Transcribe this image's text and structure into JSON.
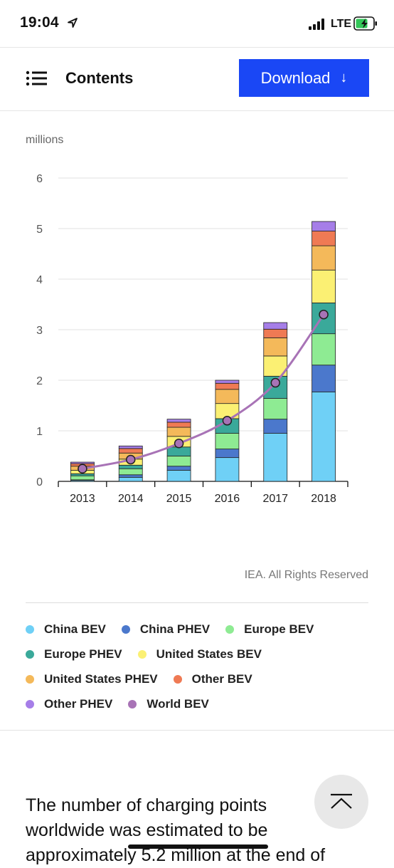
{
  "status_bar": {
    "time": "19:04",
    "network": "LTE"
  },
  "header": {
    "title": "Contents",
    "download_label": "Download",
    "download_arrow": "↓",
    "accent_color": "#1a47f5"
  },
  "chart_data": {
    "type": "bar",
    "stacked": true,
    "unit_label": "millions",
    "categories": [
      "2013",
      "2014",
      "2015",
      "2016",
      "2017",
      "2018"
    ],
    "ylim": [
      0,
      6
    ],
    "yticks": [
      "0",
      "1",
      "2",
      "3",
      "4",
      "5",
      "6"
    ],
    "grid": true,
    "series": [
      {
        "name": "China BEV",
        "color": "#6fd0f6",
        "values": [
          0.02,
          0.08,
          0.22,
          0.47,
          0.95,
          1.77
        ]
      },
      {
        "name": "China PHEV",
        "color": "#4b78cc",
        "values": [
          0.01,
          0.05,
          0.08,
          0.17,
          0.28,
          0.53
        ]
      },
      {
        "name": "Europe BEV",
        "color": "#8eeb93",
        "values": [
          0.08,
          0.12,
          0.2,
          0.31,
          0.41,
          0.62
        ]
      },
      {
        "name": "Europe PHEV",
        "color": "#3aa99a",
        "values": [
          0.04,
          0.07,
          0.18,
          0.29,
          0.44,
          0.61
        ]
      },
      {
        "name": "United States BEV",
        "color": "#fbf073",
        "values": [
          0.07,
          0.12,
          0.21,
          0.3,
          0.4,
          0.65
        ]
      },
      {
        "name": "United States PHEV",
        "color": "#f4b95a",
        "values": [
          0.08,
          0.12,
          0.18,
          0.28,
          0.36,
          0.48
        ]
      },
      {
        "name": "Other BEV",
        "color": "#ef7a54",
        "values": [
          0.05,
          0.09,
          0.1,
          0.12,
          0.17,
          0.29
        ]
      },
      {
        "name": "Other PHEV",
        "color": "#a67ee8",
        "values": [
          0.03,
          0.05,
          0.06,
          0.06,
          0.13,
          0.19
        ]
      }
    ],
    "line_series": {
      "name": "World BEV",
      "color": "#a873b6",
      "values": [
        0.25,
        0.43,
        0.75,
        1.2,
        1.95,
        3.3
      ]
    },
    "credit": "IEA. All Rights Reserved"
  },
  "legend": {
    "rows": [
      [
        {
          "label": "China BEV",
          "color": "#6fd0f6"
        },
        {
          "label": "China PHEV",
          "color": "#4b78cc"
        },
        {
          "label": "Europe BEV",
          "color": "#8eeb93"
        }
      ],
      [
        {
          "label": "Europe PHEV",
          "color": "#3aa99a"
        },
        {
          "label": "United States BEV",
          "color": "#fbf073"
        }
      ],
      [
        {
          "label": "United States PHEV",
          "color": "#f4b95a"
        },
        {
          "label": "Other BEV",
          "color": "#ef7a54"
        }
      ],
      [
        {
          "label": "Other PHEV",
          "color": "#a67ee8"
        },
        {
          "label": "World BEV",
          "color": "#a873b6"
        }
      ]
    ]
  },
  "article": {
    "line1": "The number of charging points",
    "line2": "worldwide was estimated to be",
    "line3": "approximately 5.2 million at the end of"
  }
}
